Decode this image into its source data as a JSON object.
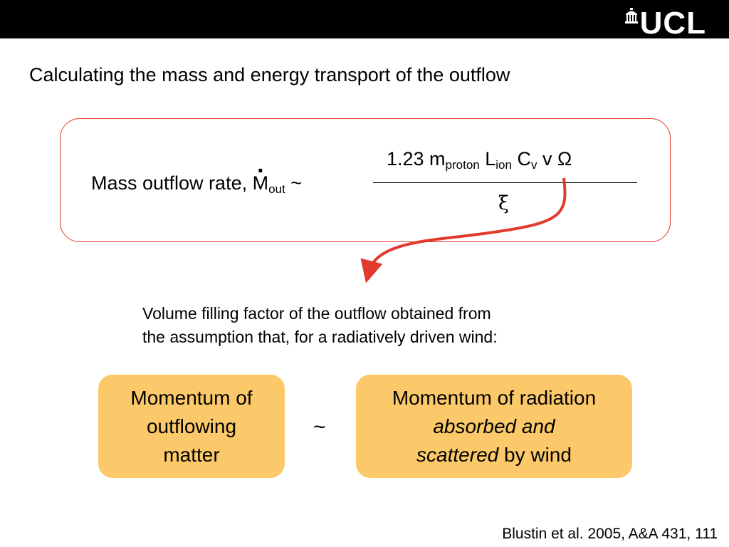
{
  "logo": {
    "text": "UCL",
    "icon": "ucl-portico-icon"
  },
  "title": "Calculating the mass and energy transport of the outflow",
  "formula": {
    "lhs_prefix": "Mass outflow rate, ",
    "lhs_symbol": "M",
    "lhs_dot": ".",
    "lhs_subscript": "out",
    "lhs_relation": " ~",
    "num_coeff": "1.23 m",
    "num_sub_proton": "proton",
    "num_L": " L",
    "num_sub_ion": "ion",
    "num_C": " C",
    "num_sub_v": "v",
    "num_tail": " v Ω",
    "denominator": "ξ"
  },
  "note": {
    "line1": "Volume filling factor of the outflow obtained from",
    "line2": "the assumption that, for a radiatively driven wind:"
  },
  "boxes": {
    "left": {
      "line1": "Momentum of",
      "line2": "outflowing",
      "line3": "matter"
    },
    "relation": "~",
    "right": {
      "line1": "Momentum of radiation",
      "line2_italic": "absorbed and",
      "line3_italic": "scattered",
      "line3_rest": " by wind"
    }
  },
  "citation": "Blustin et al. 2005, A&A 431, 111",
  "colors": {
    "topbar": "#000000",
    "accent_red": "#e23a2c",
    "box_fill": "#fcc96a"
  }
}
